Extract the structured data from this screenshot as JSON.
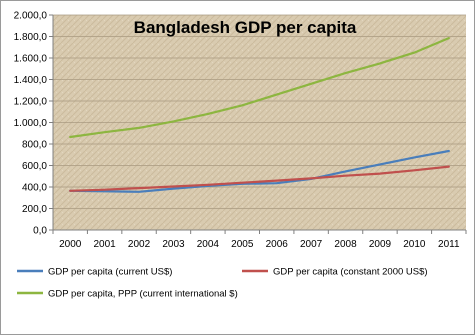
{
  "chart_data": {
    "type": "line",
    "title": "Bangladesh GDP per capita",
    "xlabel": "",
    "ylabel": "",
    "x": [
      "2000",
      "2001",
      "2002",
      "2003",
      "2004",
      "2005",
      "2006",
      "2007",
      "2008",
      "2009",
      "2010",
      "2011"
    ],
    "ylim": [
      0,
      2000
    ],
    "yticks": [
      "0,0",
      "200,0",
      "400,0",
      "600,0",
      "800,0",
      "1.000,0",
      "1.200,0",
      "1.400,0",
      "1.600,0",
      "1.800,0",
      "2.000,0"
    ],
    "grid": true,
    "legend_position": "bottom",
    "plot_background": "#d9cbb0",
    "series": [
      {
        "name": "GDP per capita (current US$)",
        "color": "#4a7ebb",
        "values": [
          365,
          360,
          355,
          385,
          410,
          430,
          435,
          475,
          545,
          610,
          675,
          735
        ]
      },
      {
        "name": "GDP per capita (constant 2000 US$)",
        "color": "#c0504d",
        "values": [
          365,
          375,
          390,
          405,
          420,
          440,
          460,
          480,
          505,
          525,
          555,
          590
        ]
      },
      {
        "name": "GDP per capita, PPP (current international $)",
        "color": "#8db640",
        "values": [
          865,
          910,
          950,
          1010,
          1080,
          1160,
          1260,
          1360,
          1460,
          1550,
          1650,
          1785
        ]
      }
    ]
  }
}
